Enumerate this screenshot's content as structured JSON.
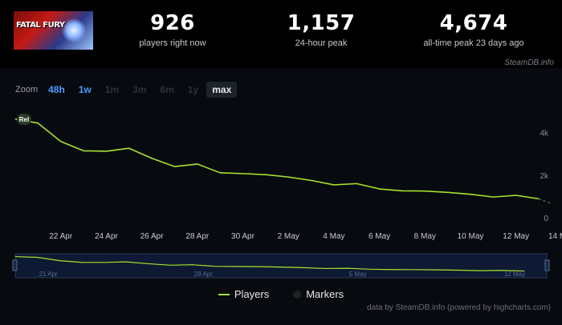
{
  "game": {
    "logo_text": "FATAL FURY"
  },
  "stats": [
    {
      "value": "926",
      "label": "players right now"
    },
    {
      "value": "1,157",
      "label": "24-hour peak"
    },
    {
      "value": "4,674",
      "label": "all-time peak 23 days ago"
    }
  ],
  "credits": {
    "top": "SteamDB.info",
    "bottom": "data by SteamDB.info (powered by highcharts.com)"
  },
  "zoom": {
    "label": "Zoom",
    "buttons": [
      {
        "label": "48h",
        "state": "on"
      },
      {
        "label": "1w",
        "state": "on"
      },
      {
        "label": "1m",
        "state": "dis"
      },
      {
        "label": "3m",
        "state": "dis"
      },
      {
        "label": "6m",
        "state": "dis"
      },
      {
        "label": "1y",
        "state": "dis"
      },
      {
        "label": "max",
        "state": "sel"
      }
    ]
  },
  "legend": {
    "players": "Players",
    "markers": "Markers"
  },
  "colors": {
    "line": "#a6e22e",
    "background": "#070a0f",
    "navigator_bg": "#0e1a33",
    "accent": "#4c9aff"
  },
  "chart_data": {
    "type": "line",
    "marker": {
      "label": "Rel",
      "x": "2025-04-20"
    },
    "x_ticks": [
      "22 Apr",
      "24 Apr",
      "26 Apr",
      "28 Apr",
      "30 Apr",
      "2 May",
      "4 May",
      "6 May",
      "8 May",
      "10 May",
      "12 May",
      "14 May"
    ],
    "y_ticks": [
      0,
      2000,
      4000
    ],
    "y_tick_labels": [
      "0",
      "2k",
      "4k"
    ],
    "ylim": [
      0,
      5000
    ],
    "grid": false,
    "legend_position": "bottom",
    "series": [
      {
        "name": "Players",
        "points": [
          [
            "2025-04-20",
            4674
          ],
          [
            "2025-04-21",
            4480
          ],
          [
            "2025-04-22",
            3620
          ],
          [
            "2025-04-23",
            3180
          ],
          [
            "2025-04-24",
            3160
          ],
          [
            "2025-04-25",
            3300
          ],
          [
            "2025-04-26",
            2830
          ],
          [
            "2025-04-27",
            2440
          ],
          [
            "2025-04-28",
            2560
          ],
          [
            "2025-04-29",
            2150
          ],
          [
            "2025-04-30",
            2110
          ],
          [
            "2025-05-01",
            2060
          ],
          [
            "2025-05-02",
            1950
          ],
          [
            "2025-05-03",
            1790
          ],
          [
            "2025-05-04",
            1580
          ],
          [
            "2025-05-05",
            1640
          ],
          [
            "2025-05-06",
            1390
          ],
          [
            "2025-05-07",
            1300
          ],
          [
            "2025-05-08",
            1290
          ],
          [
            "2025-05-09",
            1230
          ],
          [
            "2025-05-10",
            1140
          ],
          [
            "2025-05-11",
            1010
          ],
          [
            "2025-05-12",
            1090
          ],
          [
            "2025-05-13",
            926
          ]
        ]
      }
    ],
    "navigator": {
      "x_labels": [
        "21 Apr",
        "28 Apr",
        "5 May",
        "12 May"
      ]
    }
  }
}
